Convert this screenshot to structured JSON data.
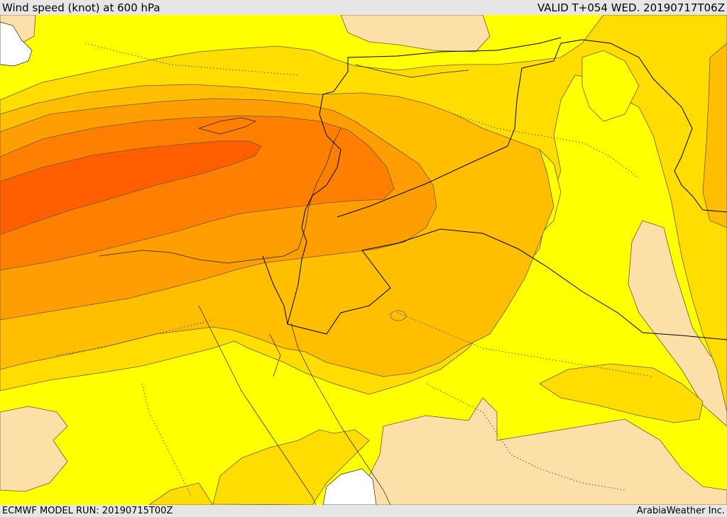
{
  "header": {
    "title": "Wind speed (knot) at 600 hPa",
    "valid": "VALID T+054 WED. 20190717T06Z"
  },
  "footer": {
    "model_run": "ECMWF MODEL RUN: 20190715T00Z",
    "credit": "ArabiaWeather Inc."
  },
  "colors": {
    "band_lightest": "#fde0a8",
    "band_yellow": "#ffff00",
    "band_gold": "#ffdd00",
    "band_amber": "#ffbf00",
    "band_orange": "#ff9e00",
    "band_dark_orange": "#ff7f00",
    "band_red_orange": "#ff5f00",
    "land_gap": "#ffffff"
  }
}
